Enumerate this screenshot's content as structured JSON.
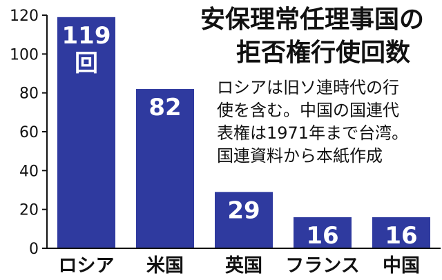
{
  "chart_data": {
    "type": "bar",
    "title_lines": [
      "安保理常任理事国の",
      "拒否権行使回数"
    ],
    "note_lines": [
      "ロシアは旧ソ連時代の行",
      "使を含む。中国の国連代",
      "表権は1971年まで台湾。",
      "国連資料から本紙作成"
    ],
    "categories": [
      "ロシア",
      "米国",
      "英国",
      "フランス",
      "中国"
    ],
    "values": [
      119,
      82,
      29,
      16,
      16
    ],
    "value_labels": [
      "119",
      "82",
      "29",
      "16",
      "16"
    ],
    "unit_label": "回",
    "yticks": [
      0,
      20,
      40,
      60,
      80,
      100,
      120
    ],
    "ylim": [
      0,
      120
    ],
    "xlabel": "",
    "ylabel": "",
    "grid": false,
    "colors": {
      "bar": "#2f3a9f",
      "axis": "#111111",
      "text": "#111111"
    }
  }
}
